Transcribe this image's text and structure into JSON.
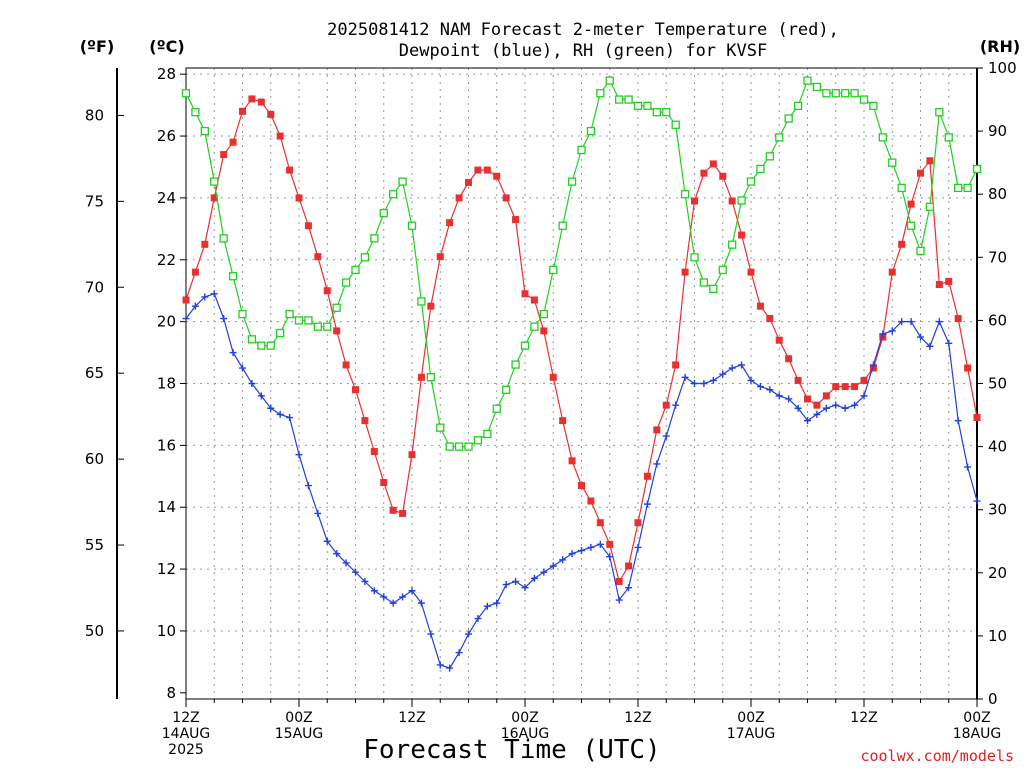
{
  "chart_data": {
    "type": "line",
    "title": [
      "2025081412 NAM Forecast 2-meter Temperature (red),",
      "Dewpoint (blue), RH (green) for KVSF"
    ],
    "units": {
      "f": "(ºF)",
      "c": "(ºC)",
      "rh": "(RH)"
    },
    "xlabel": "Forecast Time (UTC)",
    "credit": "coolwx.com/models",
    "x_hours_range": [
      0,
      84
    ],
    "x_ticks": [
      {
        "h": 0,
        "lines": [
          "12Z",
          "14AUG",
          "2025"
        ]
      },
      {
        "h": 12,
        "lines": [
          "00Z",
          "15AUG"
        ]
      },
      {
        "h": 24,
        "lines": [
          "12Z"
        ]
      },
      {
        "h": 36,
        "lines": [
          "00Z",
          "16AUG"
        ]
      },
      {
        "h": 48,
        "lines": [
          "12Z"
        ]
      },
      {
        "h": 60,
        "lines": [
          "00Z",
          "17AUG"
        ]
      },
      {
        "h": 72,
        "lines": [
          "12Z"
        ]
      },
      {
        "h": 84,
        "lines": [
          "00Z",
          "18AUG"
        ]
      }
    ],
    "y_celsius": {
      "range": [
        7.8,
        28.2
      ],
      "ticks": [
        "8",
        "10",
        "12",
        "14",
        "16",
        "18",
        "20",
        "22",
        "24",
        "26",
        "28"
      ]
    },
    "y_fahrenheit": {
      "ticks": [
        "50",
        "55",
        "60",
        "65",
        "70",
        "75",
        "80"
      ]
    },
    "y_rh": {
      "range": [
        0,
        100
      ],
      "ticks": [
        "0",
        "10",
        "20",
        "30",
        "40",
        "50",
        "60",
        "70",
        "80",
        "90",
        "100"
      ]
    },
    "grid": true,
    "colors": {
      "temperature": "#e83030",
      "dewpoint": "#2040e0",
      "rh": "#20d020"
    },
    "series": [
      {
        "name": "Temperature",
        "units": "C",
        "values": [
          20.7,
          21.6,
          22.5,
          24.0,
          25.4,
          25.8,
          26.8,
          27.2,
          27.1,
          26.7,
          26.0,
          24.9,
          24.0,
          23.1,
          22.1,
          21.0,
          19.7,
          18.6,
          17.8,
          16.8,
          15.8,
          14.8,
          13.9,
          13.8,
          15.7,
          18.2,
          20.5,
          22.1,
          23.2,
          24.0,
          24.5,
          24.9,
          24.9,
          24.7,
          24.0,
          23.3,
          20.9,
          20.7,
          19.7,
          18.2,
          16.8,
          15.5,
          14.7,
          14.2,
          13.5,
          12.8,
          11.6,
          12.1,
          13.5,
          15.0,
          16.5,
          17.3,
          18.6,
          21.6,
          23.9,
          24.8,
          25.1,
          24.7,
          23.9,
          22.8,
          21.6,
          20.5,
          20.1,
          19.4,
          18.8,
          18.1,
          17.5,
          17.3,
          17.6,
          17.9,
          17.9,
          17.9,
          18.1,
          18.5,
          19.5,
          21.6,
          22.5,
          23.8,
          24.8,
          25.2,
          21.2,
          21.3,
          20.1,
          18.5,
          16.9
        ]
      },
      {
        "name": "Dewpoint",
        "units": "C",
        "values": [
          20.1,
          20.5,
          20.8,
          20.9,
          20.1,
          19.0,
          18.5,
          18.0,
          17.6,
          17.2,
          17.0,
          16.9,
          15.7,
          14.7,
          13.8,
          12.9,
          12.5,
          12.2,
          11.9,
          11.6,
          11.3,
          11.1,
          10.9,
          11.1,
          11.3,
          10.9,
          9.9,
          8.9,
          8.8,
          9.3,
          9.9,
          10.4,
          10.8,
          10.9,
          11.5,
          11.6,
          11.4,
          11.7,
          11.9,
          12.1,
          12.3,
          12.5,
          12.6,
          12.7,
          12.8,
          12.4,
          11.0,
          11.4,
          12.7,
          14.1,
          15.4,
          16.3,
          17.3,
          18.2,
          18.0,
          18.0,
          18.1,
          18.3,
          18.5,
          18.6,
          18.1,
          17.9,
          17.8,
          17.6,
          17.5,
          17.2,
          16.8,
          17.0,
          17.2,
          17.3,
          17.2,
          17.3,
          17.6,
          18.6,
          19.6,
          19.7,
          20.0,
          20.0,
          19.5,
          19.2,
          20.0,
          19.3,
          16.8,
          15.3,
          14.2
        ]
      },
      {
        "name": "RH",
        "units": "%",
        "values": [
          96,
          93,
          90,
          82,
          73,
          67,
          61,
          57,
          56,
          56,
          58,
          61,
          60,
          60,
          59,
          59,
          62,
          66,
          68,
          70,
          73,
          77,
          80,
          82,
          75,
          63,
          51,
          43,
          40,
          40,
          40,
          41,
          42,
          46,
          49,
          53,
          56,
          59,
          61,
          68,
          75,
          82,
          87,
          90,
          96,
          98,
          95,
          95,
          94,
          94,
          93,
          93,
          91,
          80,
          70,
          66,
          65,
          68,
          72,
          79,
          82,
          84,
          86,
          89,
          92,
          94,
          98,
          97,
          96,
          96,
          96,
          96,
          95,
          94,
          89,
          85,
          81,
          75,
          71,
          78,
          93,
          89,
          81,
          81,
          84
        ]
      }
    ]
  }
}
